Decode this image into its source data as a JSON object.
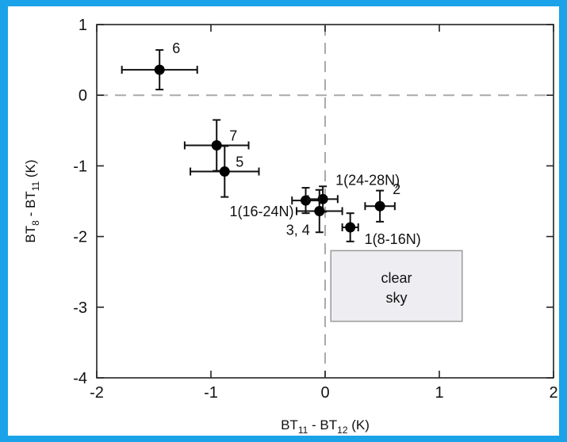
{
  "chart_data": {
    "type": "scatter",
    "title": "",
    "xlabel": "BT11 - BT12 (K)",
    "ylabel": "BT8 - BT11 (K)",
    "xlabel_parts": {
      "a": "BT",
      "a_sub": "11",
      "mid": " - BT",
      "b_sub": "12",
      "unit": " (K)"
    },
    "ylabel_parts": {
      "a": "BT",
      "a_sub": "8",
      "mid": " - BT",
      "b_sub": "11",
      "unit": " (K)"
    },
    "xlim": [
      -2,
      2
    ],
    "ylim": [
      -4,
      1
    ],
    "xticks": [
      -2,
      -1,
      0,
      1,
      2
    ],
    "yticks": [
      1,
      0,
      -1,
      -2,
      -3,
      -4
    ],
    "grid": false,
    "reference_lines": {
      "x": 0,
      "y": 0,
      "style": "dashed"
    },
    "points": [
      {
        "label": "6",
        "x": -1.45,
        "y": 0.36,
        "xerr": 0.33,
        "yerr": 0.28
      },
      {
        "label": "7",
        "x": -0.95,
        "y": -0.71,
        "xerr": 0.28,
        "yerr": 0.36
      },
      {
        "label": "5",
        "x": -0.88,
        "y": -1.08,
        "xerr": 0.3,
        "yerr": 0.36
      },
      {
        "label": "1(16-24N)",
        "x": -0.17,
        "y": -1.49,
        "xerr": 0.12,
        "yerr": 0.18
      },
      {
        "label": "1(24-28N)",
        "x": -0.02,
        "y": -1.47,
        "xerr": 0.13,
        "yerr": 0.18
      },
      {
        "label": "3, 4",
        "x": -0.05,
        "y": -1.64,
        "xerr": 0.2,
        "yerr": 0.3
      },
      {
        "label": "2",
        "x": 0.48,
        "y": -1.57,
        "xerr": 0.13,
        "yerr": 0.22
      },
      {
        "label": "1(8-16N)",
        "x": 0.22,
        "y": -1.87,
        "xerr": 0.07,
        "yerr": 0.2
      }
    ],
    "annotation_box": {
      "text_lines": [
        "clear",
        "sky"
      ],
      "x0": 0.05,
      "x1": 1.2,
      "y0": -2.2,
      "y1": -3.2,
      "fill": "#eeeef2",
      "stroke": "#999999"
    }
  }
}
